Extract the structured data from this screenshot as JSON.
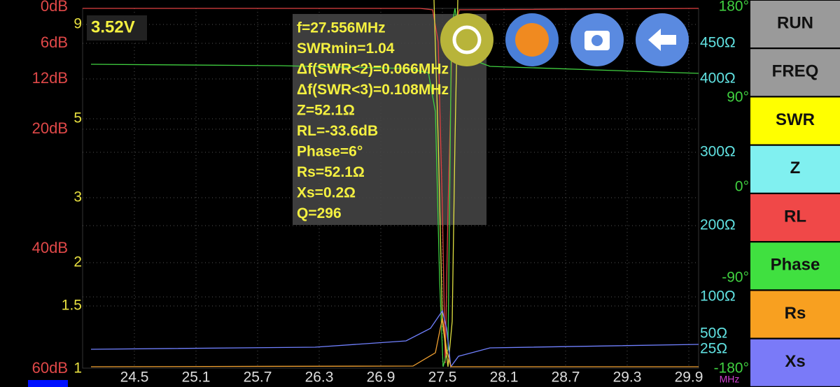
{
  "voltage": "3.52V",
  "readout": [
    "f=27.556MHz",
    "SWRmin=1.04",
    "Δf(SWR<2)=0.066MHz",
    "Δf(SWR<3)=0.108MHz",
    "Z=52.1Ω",
    "RL=-33.6dB",
    "Phase=6°",
    "Rs=52.1Ω",
    "Xs=0.2Ω",
    "Q=296"
  ],
  "rl_labels": [
    "0dB",
    "6dB",
    "12dB",
    "20dB",
    "40dB",
    "60dB"
  ],
  "swr_labels": [
    "9",
    "5",
    "3",
    "2",
    "1.5",
    "1"
  ],
  "impedance_labels": [
    "450Ω",
    "400Ω",
    "300Ω",
    "200Ω",
    "100Ω",
    "50Ω",
    "25Ω"
  ],
  "phase_labels": [
    "180°",
    "90°",
    "0°",
    "-90°",
    "-180°"
  ],
  "frequency_labels": [
    "24.5",
    "25.1",
    "25.7",
    "26.3",
    "26.9",
    "27.5",
    "28.1",
    "28.7",
    "29.3",
    "29.9"
  ],
  "frequency_unit": "MHz",
  "buttons": [
    "RUN",
    "FREQ",
    "SWR",
    "Z",
    "RL",
    "Phase",
    "Rs",
    "Xs"
  ]
}
